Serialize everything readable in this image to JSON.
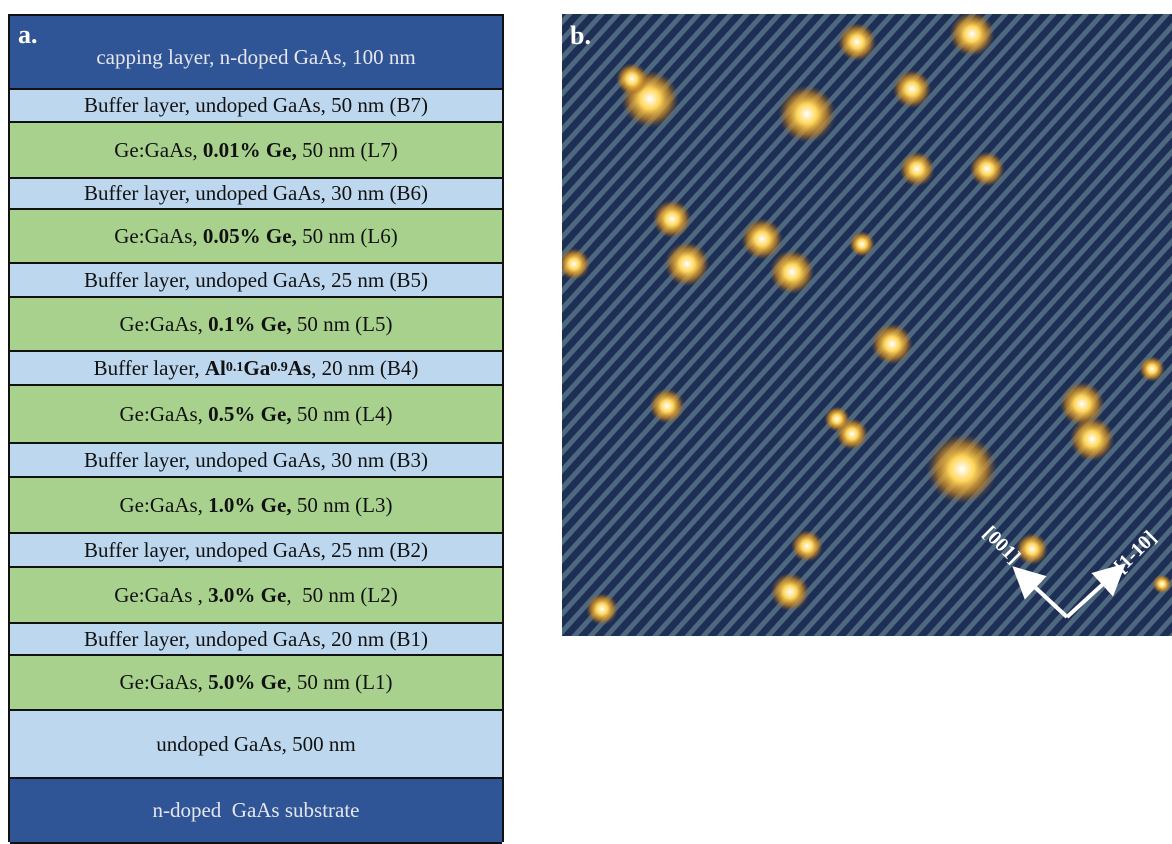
{
  "panel_a": {
    "label": "a.",
    "layers": [
      [
        {
          "text": "capping layer, n-doped GaAs, 100 nm"
        }
      ],
      [
        {
          "text": "Buffer layer, undoped GaAs, 50 nm (B7)"
        }
      ],
      [
        {
          "text": "Ge:GaAs, "
        },
        {
          "text": "0.01% Ge,",
          "style": "bold"
        },
        {
          "text": " 50 nm (L7)"
        }
      ],
      [
        {
          "text": "Buffer layer, undoped GaAs, 30 nm (B6)"
        }
      ],
      [
        {
          "text": "Ge:GaAs, "
        },
        {
          "text": "0.05% Ge,",
          "style": "bold"
        },
        {
          "text": " 50 nm (L6)"
        }
      ],
      [
        {
          "text": "Buffer layer, undoped GaAs, 25 nm (B5)"
        }
      ],
      [
        {
          "text": "Ge:GaAs, "
        },
        {
          "text": "0.1% Ge,",
          "style": "bold"
        },
        {
          "text": " 50 nm (L5)"
        }
      ],
      [
        {
          "text": "Buffer layer, "
        },
        {
          "text": "Al",
          "style": "bold"
        },
        {
          "text": "0.1",
          "style": "bold-sub"
        },
        {
          "text": "Ga",
          "style": "bold"
        },
        {
          "text": "0.9",
          "style": "bold-sub"
        },
        {
          "text": "As",
          "style": "bold"
        },
        {
          "text": ", 20 nm (B4)"
        }
      ],
      [
        {
          "text": "Ge:GaAs, "
        },
        {
          "text": "0.5% Ge,",
          "style": "bold"
        },
        {
          "text": " 50 nm (L4)"
        }
      ],
      [
        {
          "text": "Buffer layer, undoped GaAs, 30 nm (B3)"
        }
      ],
      [
        {
          "text": "Ge:GaAs, "
        },
        {
          "text": "1.0% Ge,",
          "style": "bold"
        },
        {
          "text": " 50 nm (L3)"
        }
      ],
      [
        {
          "text": "Buffer layer, undoped GaAs, 25 nm (B2)"
        }
      ],
      [
        {
          "text": "Ge:GaAs , "
        },
        {
          "text": "3.0% Ge",
          "style": "bold"
        },
        {
          "text": ",  50 nm (L2)"
        }
      ],
      [
        {
          "text": "Buffer layer, undoped GaAs, 20 nm (B1)"
        }
      ],
      [
        {
          "text": "Ge:GaAs, "
        },
        {
          "text": "5.0% Ge",
          "style": "bold"
        },
        {
          "text": ", 50 nm (L1)"
        }
      ],
      [
        {
          "text": "undoped GaAs, 500 nm"
        }
      ],
      [
        {
          "text": "n-doped  GaAs substrate"
        }
      ]
    ]
  },
  "panel_b": {
    "label": "b.",
    "direction_1": "[001]",
    "direction_2": "[1-10]"
  }
}
